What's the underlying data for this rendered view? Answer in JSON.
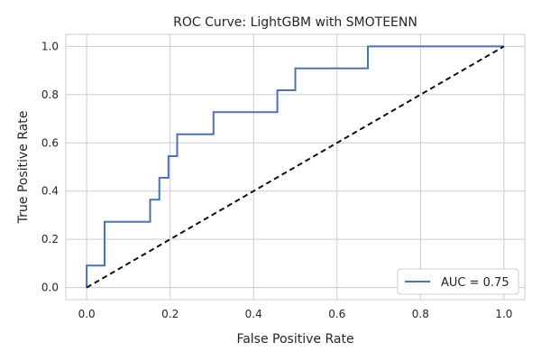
{
  "chart_data": {
    "type": "line",
    "title": "ROC Curve: LightGBM with SMOTEENN",
    "xlabel": "False Positive Rate",
    "ylabel": "True Positive Rate",
    "xlim": [
      -0.05,
      1.05
    ],
    "ylim": [
      -0.05,
      1.05
    ],
    "xticks": [
      0.0,
      0.2,
      0.4,
      0.6,
      0.8,
      1.0
    ],
    "yticks": [
      0.0,
      0.2,
      0.4,
      0.6,
      0.8,
      1.0
    ],
    "xtick_labels": [
      "0.0",
      "0.2",
      "0.4",
      "0.6",
      "0.8",
      "1.0"
    ],
    "ytick_labels": [
      "0.0",
      "0.2",
      "0.4",
      "0.6",
      "0.8",
      "1.0"
    ],
    "grid": true,
    "legend_position": "lower-right",
    "series": [
      {
        "name": "AUC = 0.75",
        "color": "#4c72b0",
        "style": "solid",
        "x": [
          0.0,
          0.0,
          0.043,
          0.043,
          0.152,
          0.152,
          0.174,
          0.174,
          0.196,
          0.196,
          0.217,
          0.217,
          0.304,
          0.304,
          0.457,
          0.457,
          0.5,
          0.5,
          0.674,
          0.674,
          1.0
        ],
        "y": [
          0.0,
          0.091,
          0.091,
          0.273,
          0.273,
          0.364,
          0.364,
          0.455,
          0.455,
          0.545,
          0.545,
          0.636,
          0.636,
          0.727,
          0.727,
          0.818,
          0.818,
          0.909,
          0.909,
          1.0,
          1.0
        ]
      },
      {
        "color": "#111111",
        "style": "dashed",
        "x": [
          0.0,
          1.0
        ],
        "y": [
          0.0,
          1.0
        ]
      }
    ]
  }
}
